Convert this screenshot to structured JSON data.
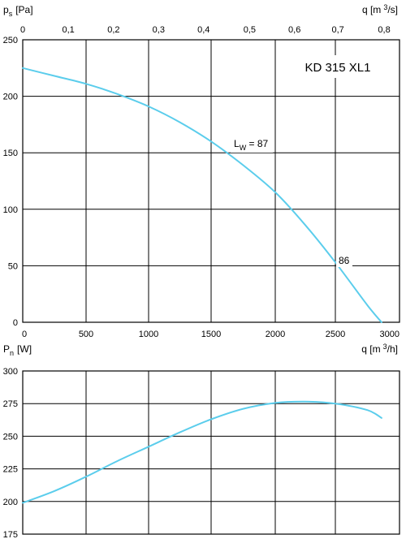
{
  "chart_data": [
    {
      "type": "line",
      "title": "KD 315 XL1",
      "ylabel": {
        "main": "p",
        "sub": "s",
        "unit": "[Pa]"
      },
      "xlabel_bottom": {
        "main": "q [m",
        "sup": "3",
        "end": "/h]"
      },
      "xlabel_top": {
        "main": "q [m",
        "sup": "3",
        "end": "/s]"
      },
      "xlim": [
        0,
        3000
      ],
      "ylim": [
        0,
        250
      ],
      "x_ticks": [
        0,
        500,
        1000,
        1500,
        2000,
        2500,
        3000
      ],
      "y_ticks": [
        0,
        50,
        100,
        150,
        200,
        250
      ],
      "top_ticks": [
        "0",
        "0,1",
        "0,2",
        "0,3",
        "0,4",
        "0,5",
        "0,6",
        "0,7",
        "0,8"
      ],
      "top_tick_values": [
        0,
        0.1,
        0.2,
        0.3,
        0.4,
        0.5,
        0.6,
        0.7,
        0.8
      ],
      "grid": true,
      "series": [
        {
          "x": [
            0,
            250,
            500,
            750,
            1000,
            1250,
            1500,
            1750,
            2000,
            2250,
            2500,
            2750,
            2860
          ],
          "y": [
            225,
            218,
            211,
            202,
            191,
            177,
            160,
            139,
            115,
            86,
            53,
            15,
            0
          ]
        }
      ],
      "annotations": [
        {
          "main": "L",
          "sub": "W",
          "text": " = 87",
          "x": 1700,
          "y": 158
        },
        {
          "text": "86",
          "x": 2580,
          "y": 53
        }
      ]
    },
    {
      "type": "line",
      "ylabel": {
        "main": "P",
        "sub": "n",
        "unit": "[W]"
      },
      "xlim": [
        0,
        3000
      ],
      "ylim": [
        175,
        300
      ],
      "y_ticks": [
        175,
        200,
        225,
        250,
        275,
        300
      ],
      "grid": true,
      "series": [
        {
          "x": [
            0,
            250,
            500,
            750,
            1000,
            1250,
            1500,
            1750,
            2000,
            2250,
            2500,
            2750,
            2860
          ],
          "y": [
            199,
            208,
            219,
            231,
            242,
            253,
            263,
            271,
            275.5,
            276.5,
            275,
            270,
            264
          ]
        }
      ]
    }
  ],
  "colors": {
    "curve": "#5bcdec",
    "grid": "#000000",
    "frame": "#000000"
  }
}
